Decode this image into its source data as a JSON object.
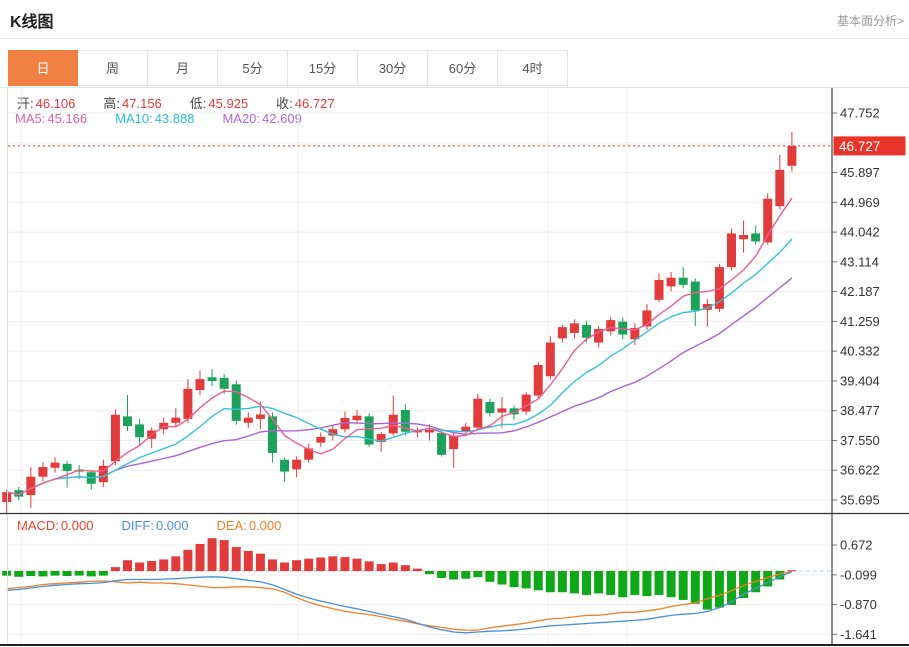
{
  "header": {
    "title": "K线图",
    "link_label": "基本面分析>"
  },
  "tabs": {
    "active_index": 0,
    "items": [
      "日",
      "周",
      "月",
      "5分",
      "15分",
      "30分",
      "60分",
      "4时"
    ]
  },
  "ohlc_legend": {
    "items": [
      {
        "label": "开:",
        "value": "46.106"
      },
      {
        "label": "高:",
        "value": "47.156"
      },
      {
        "label": "低:",
        "value": "45.925"
      },
      {
        "label": "收:",
        "value": "46.727"
      }
    ]
  },
  "ma_legend": {
    "items": [
      {
        "label": "MA5:",
        "value": "45.166",
        "color": "#e2609a"
      },
      {
        "label": "MA10:",
        "value": "43.888",
        "color": "#2cc0d8"
      },
      {
        "label": "MA20:",
        "value": "42.609",
        "color": "#b168e0"
      }
    ]
  },
  "macd_legend": {
    "items": [
      {
        "label": "MACD:",
        "value": "0.000",
        "color": "#e8442e"
      },
      {
        "label": "DIFF:",
        "value": "0.000",
        "color": "#4a90d9"
      },
      {
        "label": "DEA:",
        "value": "0.000",
        "color": "#f0812a"
      }
    ]
  },
  "colors": {
    "up": "#e23b3b",
    "down": "#1da25b",
    "macd_up": "#e23b3b",
    "macd_down": "#0fa818",
    "ma5": "#ee5e94",
    "ma10": "#35c3dc",
    "ma20": "#ad63d4",
    "diff_line": "#4a90d9",
    "dea_line": "#f0812a",
    "tab_accent": "#f08044",
    "price_tag": "#e8352b",
    "grid": "#ededed",
    "axis_border": "#444",
    "axis_text": "#333"
  },
  "chart_data": {
    "type": "candlestick+macd",
    "title": "K线图 (daily K-line with MA5/MA10/MA20 and MACD)",
    "legend_position": "top-left-overlay",
    "grid": true,
    "ma_periods": [
      5,
      10,
      20
    ],
    "last_price": "46.727",
    "price_axis": {
      "min": 35.695,
      "max": 47.752,
      "ticks": [
        {
          "label": "47.752",
          "value": 47.752
        },
        {
          "label": "",
          "value": 46.824
        },
        {
          "label": "45.897",
          "value": 45.897
        },
        {
          "label": "44.969",
          "value": 44.969
        },
        {
          "label": "44.042",
          "value": 44.042
        },
        {
          "label": "43.114",
          "value": 43.114
        },
        {
          "label": "42.187",
          "value": 42.187
        },
        {
          "label": "41.259",
          "value": 41.259
        },
        {
          "label": "40.332",
          "value": 40.332
        },
        {
          "label": "39.404",
          "value": 39.404
        },
        {
          "label": "38.477",
          "value": 38.477
        },
        {
          "label": "37.550",
          "value": 37.55
        },
        {
          "label": "36.622",
          "value": 36.622
        },
        {
          "label": "35.695",
          "value": 35.695
        }
      ]
    },
    "candles": [
      [
        35.63,
        36.02,
        35.25,
        35.94
      ],
      [
        36.0,
        36.1,
        35.68,
        35.8
      ],
      [
        35.85,
        36.72,
        35.45,
        36.42
      ],
      [
        36.42,
        36.88,
        36.28,
        36.72
      ],
      [
        36.7,
        37.02,
        36.55,
        36.86
      ],
      [
        36.82,
        36.92,
        36.08,
        36.6
      ],
      [
        36.63,
        36.78,
        36.35,
        36.58
      ],
      [
        36.56,
        36.62,
        36.02,
        36.2
      ],
      [
        36.25,
        36.95,
        36.1,
        36.76
      ],
      [
        36.9,
        38.52,
        36.78,
        38.35
      ],
      [
        38.3,
        38.97,
        37.85,
        38.0
      ],
      [
        38.05,
        38.22,
        37.42,
        37.65
      ],
      [
        37.6,
        37.96,
        37.32,
        37.86
      ],
      [
        37.9,
        38.26,
        37.74,
        38.1
      ],
      [
        38.1,
        38.56,
        37.98,
        38.26
      ],
      [
        38.22,
        39.46,
        38.1,
        39.16
      ],
      [
        39.12,
        39.72,
        38.96,
        39.46
      ],
      [
        39.52,
        39.78,
        39.24,
        39.4
      ],
      [
        39.5,
        39.62,
        39.0,
        39.16
      ],
      [
        39.3,
        39.42,
        38.04,
        38.16
      ],
      [
        38.1,
        38.42,
        37.94,
        38.26
      ],
      [
        38.22,
        38.76,
        37.9,
        38.36
      ],
      [
        38.3,
        38.42,
        36.86,
        37.16
      ],
      [
        36.95,
        37.02,
        36.27,
        36.58
      ],
      [
        36.65,
        37.05,
        36.4,
        36.95
      ],
      [
        36.95,
        37.45,
        36.85,
        37.3
      ],
      [
        37.48,
        37.8,
        37.35,
        37.66
      ],
      [
        37.7,
        38.0,
        37.55,
        37.9
      ],
      [
        37.9,
        38.45,
        37.8,
        38.25
      ],
      [
        38.18,
        38.5,
        38.05,
        38.32
      ],
      [
        38.3,
        38.4,
        37.35,
        37.42
      ],
      [
        37.5,
        37.82,
        37.2,
        37.75
      ],
      [
        37.77,
        38.95,
        37.7,
        38.35
      ],
      [
        38.5,
        38.68,
        37.7,
        37.82
      ],
      [
        37.8,
        37.96,
        37.65,
        37.86
      ],
      [
        37.8,
        38.05,
        37.55,
        37.88
      ],
      [
        37.78,
        37.85,
        37.05,
        37.1
      ],
      [
        37.28,
        37.78,
        36.7,
        37.7
      ],
      [
        37.84,
        38.1,
        37.7,
        37.98
      ],
      [
        37.95,
        39.0,
        37.85,
        38.85
      ],
      [
        38.75,
        38.85,
        38.3,
        38.4
      ],
      [
        38.42,
        38.9,
        37.95,
        38.55
      ],
      [
        38.55,
        38.65,
        38.2,
        38.36
      ],
      [
        38.45,
        39.05,
        38.35,
        38.98
      ],
      [
        38.95,
        40.0,
        38.85,
        39.9
      ],
      [
        39.55,
        40.8,
        39.45,
        40.6
      ],
      [
        40.73,
        41.15,
        40.6,
        41.08
      ],
      [
        40.9,
        41.32,
        40.72,
        41.2
      ],
      [
        41.15,
        41.28,
        40.6,
        40.75
      ],
      [
        40.6,
        41.12,
        40.45,
        41.02
      ],
      [
        40.95,
        41.4,
        40.82,
        41.3
      ],
      [
        41.25,
        41.38,
        40.7,
        40.85
      ],
      [
        40.7,
        41.2,
        40.52,
        41.05
      ],
      [
        41.1,
        41.8,
        41.0,
        41.6
      ],
      [
        41.93,
        42.76,
        41.85,
        42.55
      ],
      [
        42.35,
        42.8,
        42.2,
        42.62
      ],
      [
        42.62,
        42.95,
        42.3,
        42.4
      ],
      [
        42.5,
        42.6,
        41.12,
        41.6
      ],
      [
        41.62,
        41.95,
        41.1,
        41.8
      ],
      [
        41.65,
        43.05,
        41.55,
        42.95
      ],
      [
        42.95,
        44.15,
        42.85,
        44.0
      ],
      [
        43.82,
        44.4,
        43.4,
        43.95
      ],
      [
        44.0,
        44.25,
        43.65,
        43.75
      ],
      [
        43.72,
        45.25,
        43.65,
        45.08
      ],
      [
        44.85,
        46.45,
        44.75,
        45.98
      ],
      [
        46.106,
        47.156,
        45.925,
        46.727
      ]
    ],
    "macd": {
      "ticks": [
        {
          "label": "0.672",
          "value": 0.672
        },
        {
          "label": "-0.099",
          "value": -0.099
        },
        {
          "label": "-0.870",
          "value": -0.87
        },
        {
          "label": "-1.641",
          "value": -1.641
        }
      ],
      "hist": [
        -0.12,
        -0.15,
        -0.13,
        -0.14,
        -0.12,
        -0.13,
        -0.12,
        -0.14,
        -0.12,
        0.1,
        0.28,
        0.22,
        0.26,
        0.3,
        0.38,
        0.55,
        0.7,
        0.85,
        0.8,
        0.62,
        0.52,
        0.45,
        0.3,
        0.22,
        0.28,
        0.32,
        0.35,
        0.38,
        0.36,
        0.32,
        0.25,
        0.18,
        0.22,
        0.15,
        0.06,
        -0.08,
        -0.18,
        -0.22,
        -0.2,
        -0.16,
        -0.28,
        -0.35,
        -0.42,
        -0.45,
        -0.5,
        -0.55,
        -0.55,
        -0.58,
        -0.62,
        -0.58,
        -0.62,
        -0.68,
        -0.62,
        -0.65,
        -0.62,
        -0.68,
        -0.75,
        -0.85,
        -1.0,
        -0.95,
        -0.88,
        -0.7,
        -0.55,
        -0.4,
        -0.22,
        0.02
      ],
      "diff": [
        -0.5,
        -0.48,
        -0.44,
        -0.4,
        -0.37,
        -0.35,
        -0.33,
        -0.32,
        -0.3,
        -0.25,
        -0.22,
        -0.22,
        -0.22,
        -0.21,
        -0.2,
        -0.18,
        -0.16,
        -0.15,
        -0.16,
        -0.2,
        -0.24,
        -0.28,
        -0.36,
        -0.48,
        -0.6,
        -0.7,
        -0.78,
        -0.85,
        -0.92,
        -0.98,
        -1.05,
        -1.12,
        -1.18,
        -1.25,
        -1.35,
        -1.45,
        -1.52,
        -1.58,
        -1.6,
        -1.58,
        -1.56,
        -1.55,
        -1.53,
        -1.5,
        -1.46,
        -1.42,
        -1.4,
        -1.38,
        -1.36,
        -1.34,
        -1.32,
        -1.3,
        -1.28,
        -1.25,
        -1.2,
        -1.15,
        -1.12,
        -1.1,
        -1.05,
        -0.95,
        -0.8,
        -0.6,
        -0.45,
        -0.3,
        -0.15,
        -0.02
      ],
      "dea": [
        -0.46,
        -0.43,
        -0.4,
        -0.35,
        -0.33,
        -0.31,
        -0.29,
        -0.27,
        -0.26,
        -0.28,
        -0.31,
        -0.29,
        -0.31,
        -0.31,
        -0.33,
        -0.36,
        -0.39,
        -0.43,
        -0.43,
        -0.41,
        -0.41,
        -0.43,
        -0.46,
        -0.55,
        -0.69,
        -0.81,
        -0.9,
        -0.98,
        -1.04,
        -1.09,
        -1.13,
        -1.18,
        -1.25,
        -1.3,
        -1.37,
        -1.42,
        -1.46,
        -1.51,
        -1.53,
        -1.53,
        -1.47,
        -1.43,
        -1.39,
        -1.35,
        -1.29,
        -1.24,
        -1.22,
        -1.19,
        -1.15,
        -1.15,
        -1.11,
        -1.07,
        -1.07,
        -1.03,
        -0.99,
        -0.92,
        -0.87,
        -0.82,
        -0.72,
        -0.63,
        -0.51,
        -0.37,
        -0.27,
        -0.17,
        -0.08,
        -0.01
      ]
    }
  }
}
